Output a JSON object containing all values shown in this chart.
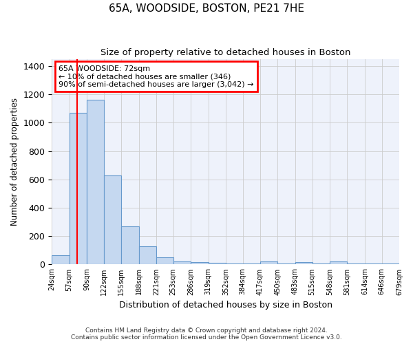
{
  "title1": "65A, WOODSIDE, BOSTON, PE21 7HE",
  "title2": "Size of property relative to detached houses in Boston",
  "xlabel": "Distribution of detached houses by size in Boston",
  "ylabel": "Number of detached properties",
  "footer1": "Contains HM Land Registry data © Crown copyright and database right 2024.",
  "footer2": "Contains public sector information licensed under the Open Government Licence v3.0.",
  "annotation_line1": "65A WOODSIDE: 72sqm",
  "annotation_line2": "← 10% of detached houses are smaller (346)",
  "annotation_line3": "90% of semi-detached houses are larger (3,042) →",
  "bin_edges": [
    24,
    57,
    90,
    122,
    155,
    188,
    221,
    253,
    286,
    319,
    352,
    384,
    417,
    450,
    483,
    515,
    548,
    581,
    614,
    646,
    679
  ],
  "bar_heights": [
    65,
    1070,
    1160,
    630,
    270,
    130,
    50,
    20,
    15,
    10,
    5,
    5,
    20,
    5,
    15,
    5,
    20,
    5,
    5,
    5
  ],
  "bar_color": "#c5d8f0",
  "bar_edge_color": "#6699cc",
  "red_line_x": 72,
  "ylim": [
    0,
    1450
  ],
  "yticks": [
    0,
    200,
    400,
    600,
    800,
    1000,
    1200,
    1400
  ],
  "background_color": "#eef2fb"
}
